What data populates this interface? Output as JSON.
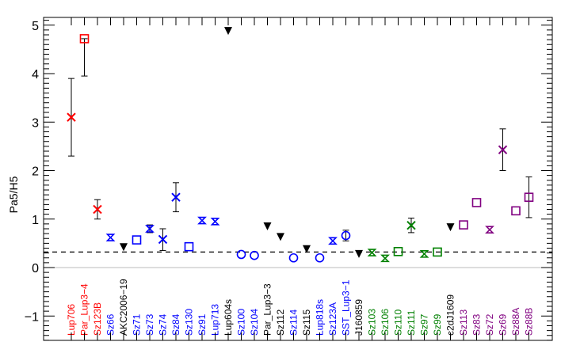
{
  "chart_data": {
    "type": "scatter",
    "ylabel": "Pa5/H5",
    "ylim": [
      -1.5,
      5.2
    ],
    "yticks": [
      -1,
      0,
      1,
      2,
      3,
      4,
      5
    ],
    "reference_lines": [
      {
        "value": 0,
        "style": "solid",
        "color": "#bbbbbb"
      },
      {
        "value": 0.32,
        "style": "dashed",
        "color": "#000000"
      }
    ],
    "grid": false,
    "colors": {
      "red": "#ff0000",
      "blue": "#0000ff",
      "green": "#008000",
      "purple": "#800080",
      "black": "#000000"
    },
    "points": [
      {
        "label": "Lup706",
        "color": "red",
        "marker": "x",
        "y": 3.1,
        "yerr": [
          2.3,
          3.9
        ]
      },
      {
        "label": "Par_Lup3−4",
        "color": "red",
        "marker": "square",
        "y": 4.72,
        "yerr": [
          3.95,
          4.72
        ]
      },
      {
        "label": "Sz123B",
        "color": "red",
        "marker": "x",
        "y": 1.2,
        "yerr": [
          1.0,
          1.4
        ]
      },
      {
        "label": "Sz66",
        "color": "blue",
        "marker": "hourglass",
        "y": 0.62
      },
      {
        "label": "AKC2006−19",
        "color": "black",
        "marker": "triangle-down",
        "y": 0.42
      },
      {
        "label": "Sz71",
        "color": "blue",
        "marker": "square",
        "y": 0.57
      },
      {
        "label": "Sz73",
        "color": "blue",
        "marker": "hourglass",
        "y": 0.8,
        "yerr": [
          0.72,
          0.88
        ]
      },
      {
        "label": "Sz74",
        "color": "blue",
        "marker": "x",
        "y": 0.58,
        "yerr": [
          0.35,
          0.8
        ]
      },
      {
        "label": "Sz84",
        "color": "blue",
        "marker": "x",
        "y": 1.45,
        "yerr": [
          1.15,
          1.75
        ]
      },
      {
        "label": "Sz130",
        "color": "blue",
        "marker": "square",
        "y": 0.43
      },
      {
        "label": "Sz91",
        "color": "blue",
        "marker": "hourglass",
        "y": 0.97
      },
      {
        "label": "Lup713",
        "color": "blue",
        "marker": "hourglass",
        "y": 0.95
      },
      {
        "label": "Lup604s",
        "color": "black",
        "marker": "triangle-down",
        "y": 4.88
      },
      {
        "label": "Sz100",
        "color": "blue",
        "marker": "circle",
        "y": 0.27
      },
      {
        "label": "Sz104",
        "color": "blue",
        "marker": "circle",
        "y": 0.25
      },
      {
        "label": "Par_Lup3−3",
        "color": "black",
        "marker": "triangle-down",
        "y": 0.85
      },
      {
        "label": "Sz112",
        "color": "black",
        "marker": "triangle-down",
        "y": 0.63
      },
      {
        "label": "Sz114",
        "color": "blue",
        "marker": "circle",
        "y": 0.2
      },
      {
        "label": "Sz115",
        "color": "black",
        "marker": "triangle-down",
        "y": 0.38
      },
      {
        "label": "Lup818s",
        "color": "blue",
        "marker": "circle",
        "y": 0.2
      },
      {
        "label": "Sz123A",
        "color": "blue",
        "marker": "hourglass",
        "y": 0.55
      },
      {
        "label": "SST_Lup3−1",
        "color": "blue",
        "marker": "circle",
        "y": 0.66,
        "yerr": [
          0.55,
          0.77
        ]
      },
      {
        "label": "J160859",
        "color": "black",
        "marker": "triangle-down",
        "y": 0.28
      },
      {
        "label": "Sz103",
        "color": "green",
        "marker": "hourglass",
        "y": 0.31
      },
      {
        "label": "Sz106",
        "color": "green",
        "marker": "hourglass",
        "y": 0.19
      },
      {
        "label": "Sz110",
        "color": "green",
        "marker": "square",
        "y": 0.33
      },
      {
        "label": "Sz111",
        "color": "green",
        "marker": "x",
        "y": 0.87,
        "yerr": [
          0.72,
          1.02
        ]
      },
      {
        "label": "Sz97",
        "color": "green",
        "marker": "hourglass",
        "y": 0.28
      },
      {
        "label": "Sz99",
        "color": "green",
        "marker": "square",
        "y": 0.32
      },
      {
        "label": "c2dJ1609",
        "color": "black",
        "marker": "triangle-down",
        "y": 0.83
      },
      {
        "label": "Sz113",
        "color": "purple",
        "marker": "square",
        "y": 0.88
      },
      {
        "label": "Sz83",
        "color": "purple",
        "marker": "square",
        "y": 1.34
      },
      {
        "label": "Sz72",
        "color": "purple",
        "marker": "hourglass",
        "y": 0.78
      },
      {
        "label": "Sz69",
        "color": "purple",
        "marker": "x",
        "y": 2.43,
        "yerr": [
          2.0,
          2.86
        ]
      },
      {
        "label": "Sz88A",
        "color": "purple",
        "marker": "square",
        "y": 1.17
      },
      {
        "label": "Sz88B",
        "color": "purple",
        "marker": "square",
        "y": 1.45,
        "yerr": [
          1.03,
          1.87
        ]
      }
    ]
  }
}
